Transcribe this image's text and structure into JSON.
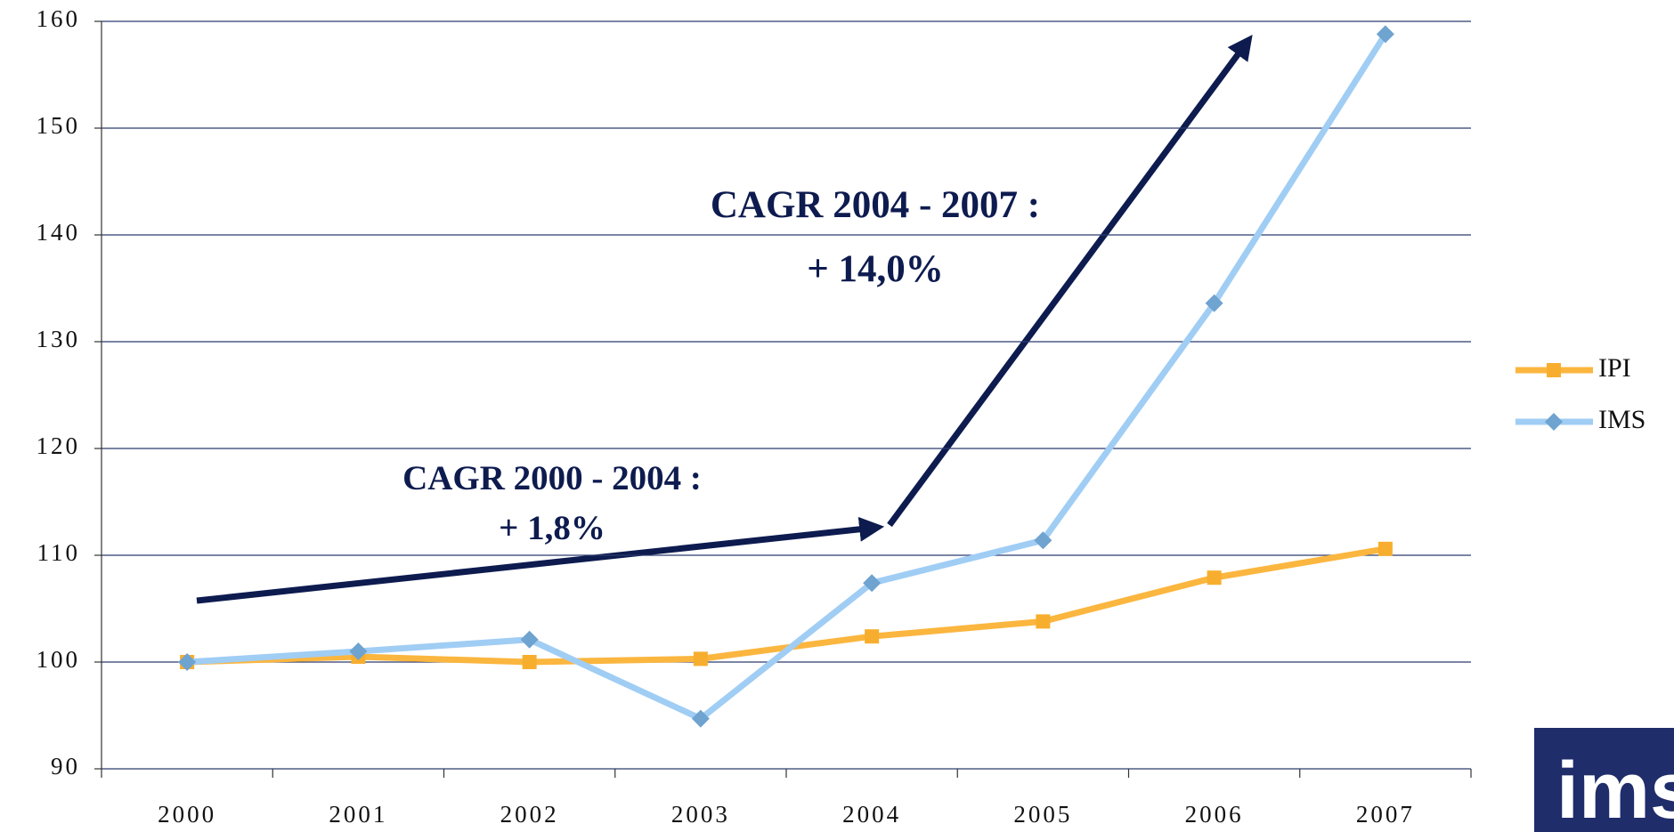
{
  "chart_data": {
    "type": "line",
    "categories": [
      "2000",
      "2001",
      "2002",
      "2003",
      "2004",
      "2005",
      "2006",
      "2007"
    ],
    "series": [
      {
        "name": "IPI",
        "color": "#fbb63f",
        "marker_color": "#f7ae2e",
        "values": [
          100,
          100.5,
          100,
          100.3,
          102.4,
          103.8,
          107.9,
          110.6
        ]
      },
      {
        "name": "IMS",
        "color": "#a0cdf4",
        "marker_color": "#6fa3d0",
        "values": [
          100,
          101,
          102.1,
          94.7,
          107.4,
          111.4,
          133.6,
          158.8
        ]
      }
    ],
    "ylim": [
      90,
      160
    ],
    "yticks": [
      90,
      100,
      110,
      120,
      130,
      140,
      150,
      160
    ],
    "grid": true,
    "legend": "right",
    "annotations": [
      {
        "line1": "CAGR 2004 - 2007 :",
        "line2": "+ 14,0%"
      },
      {
        "line1": "CAGR 2000 - 2004 :",
        "line2": "+ 1,8%"
      }
    ],
    "logo": "ims"
  }
}
